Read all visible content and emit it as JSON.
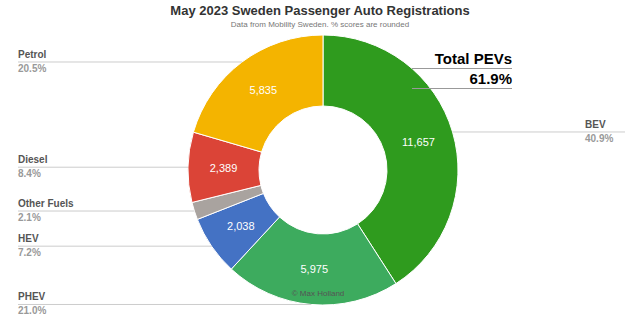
{
  "chart_data": {
    "type": "pie",
    "title": "May 2023 Sweden Passenger Auto Registrations",
    "subtitle": "Data from Mobility Sweden. % scores are rounded",
    "categories": [
      "BEV",
      "PHEV",
      "HEV",
      "Other Fuels",
      "Diesel",
      "Petrol"
    ],
    "values": [
      11657,
      5975,
      2038,
      598,
      2389,
      5835
    ],
    "value_labels": [
      "11,657",
      "5,975",
      "2,038",
      null,
      "2,389",
      "5,835"
    ],
    "percent_labels": [
      "40.9%",
      "21.0%",
      "7.2%",
      "2.1%",
      "8.4%",
      "20.5%"
    ],
    "colors": [
      "#2f9b1e",
      "#3dab5e",
      "#4472c4",
      "#a9a39f",
      "#db4437",
      "#f4b400"
    ],
    "data_labels": true,
    "annotations": [
      "Total PEVs",
      "61.9%"
    ],
    "credit": "© Max Holland"
  }
}
